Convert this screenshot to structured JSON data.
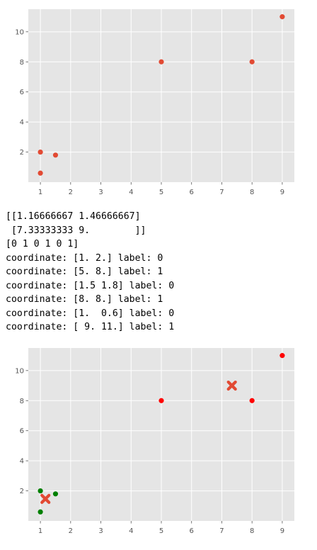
{
  "chart_data": [
    {
      "type": "scatter",
      "title": "",
      "xlabel": "",
      "ylabel": "",
      "xlim": [
        0.6,
        9.4
      ],
      "ylim": [
        0.0,
        11.5
      ],
      "xticks": [
        "1",
        "2",
        "3",
        "4",
        "5",
        "6",
        "7",
        "8",
        "9"
      ],
      "yticks": [
        "2",
        "4",
        "6",
        "8",
        "10"
      ],
      "grid": true,
      "background": "#e5e5e5",
      "series": [
        {
          "points": [
            [
              1,
              2
            ],
            [
              1.5,
              1.8
            ],
            [
              5,
              8
            ],
            [
              8,
              8
            ],
            [
              1,
              0.6
            ],
            [
              9,
              11
            ]
          ],
          "color": "#e24a33",
          "marker": "circle"
        }
      ]
    },
    {
      "type": "scatter",
      "title": "",
      "xlabel": "",
      "ylabel": "",
      "xlim": [
        0.6,
        9.4
      ],
      "ylim": [
        0.0,
        11.5
      ],
      "xticks": [
        "1",
        "2",
        "3",
        "4",
        "5",
        "6",
        "7",
        "8",
        "9"
      ],
      "yticks": [
        "2",
        "4",
        "6",
        "8",
        "10"
      ],
      "grid": true,
      "background": "#e5e5e5",
      "series": [
        {
          "points": [
            [
              1,
              2
            ],
            [
              1.5,
              1.8
            ],
            [
              1,
              0.6
            ]
          ],
          "color": "#008000",
          "marker": "circle"
        },
        {
          "points": [
            [
              5,
              8
            ],
            [
              8,
              8
            ],
            [
              9,
              11
            ]
          ],
          "color": "#ff0000",
          "marker": "circle"
        },
        {
          "points": [
            [
              1.16666667,
              1.46666667
            ],
            [
              7.33333333,
              9.0
            ]
          ],
          "color": "#e24a33",
          "marker": "x"
        }
      ]
    }
  ],
  "output": {
    "lines": [
      "[[1.16666667 1.46666667]",
      " [7.33333333 9.        ]]",
      "[0 1 0 1 0 1]",
      "coordinate: [1. 2.] label: 0",
      "coordinate: [5. 8.] label: 1",
      "coordinate: [1.5 1.8] label: 0",
      "coordinate: [8. 8.] label: 1",
      "coordinate: [1.  0.6] label: 0",
      "coordinate: [ 9. 11.] label: 1"
    ]
  }
}
